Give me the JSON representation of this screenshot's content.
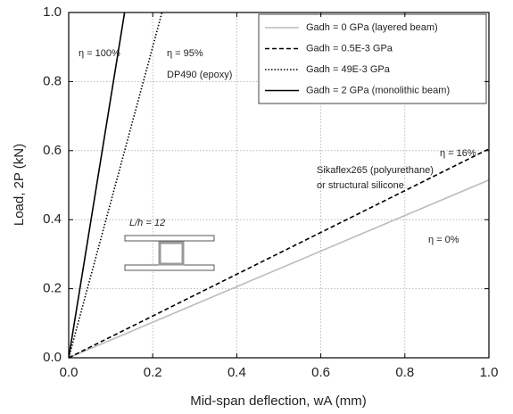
{
  "chart_data": {
    "type": "line",
    "xlabel": "Mid-span deflection, wA (mm)",
    "ylabel": "Load, 2P (kN)",
    "xlim": [
      0,
      1
    ],
    "ylim": [
      0,
      1
    ],
    "xticks": [
      {
        "value": 0,
        "label": "0.0"
      },
      0.2,
      0.4,
      0.6,
      0.8,
      {
        "value": 1,
        "label": "1.0"
      }
    ],
    "yticks": [
      {
        "value": 0,
        "label": "0.0"
      },
      0.2,
      0.4,
      0.6,
      0.8,
      {
        "value": 1,
        "label": "1.0"
      }
    ],
    "grid": true,
    "legend": "upper right",
    "series": [
      {
        "name": "Gadh = 0 GPa (layered beam)",
        "color": "#bbbbbb",
        "dash": "solid",
        "x": [
          0,
          1
        ],
        "values": [
          0,
          0.515
        ]
      },
      {
        "name": "Gadh = 0.5E-3 GPa",
        "color": "#000000",
        "dash": "dashed",
        "x": [
          0,
          1
        ],
        "values": [
          0,
          0.605
        ]
      },
      {
        "name": "Gadh = 49E-3 GPa",
        "color": "#000000",
        "dash": "dotted",
        "x": [
          0,
          0.222
        ],
        "values": [
          0,
          1
        ]
      },
      {
        "name": "Gadh = 2 GPa (monolithic beam)",
        "color": "#000000",
        "dash": "solid",
        "x": [
          0,
          0.133
        ],
        "values": [
          0,
          1
        ]
      }
    ],
    "annotations": [
      "η = 100%",
      "η = 95%",
      "DP490 (epoxy)",
      "η = 16%",
      "Sikaflex265 (polyurethane)",
      "or structural silicone",
      "η = 0%",
      "L/h = 12"
    ]
  }
}
